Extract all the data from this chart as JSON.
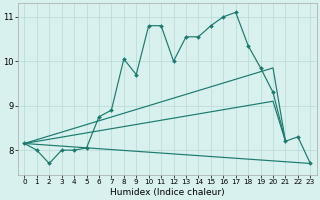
{
  "xlabel": "Humidex (Indice chaleur)",
  "background_color": "#d8f0ee",
  "grid_color": "#b8d8d4",
  "line_color": "#1a7a6e",
  "xlim": [
    -0.5,
    23.5
  ],
  "ylim": [
    7.45,
    11.3
  ],
  "yticks": [
    8,
    9,
    10,
    11
  ],
  "xticks": [
    0,
    1,
    2,
    3,
    4,
    5,
    6,
    7,
    8,
    9,
    10,
    11,
    12,
    13,
    14,
    15,
    16,
    17,
    18,
    19,
    20,
    21,
    22,
    23
  ],
  "main_series": {
    "x": [
      0,
      1,
      2,
      3,
      4,
      5,
      6,
      7,
      8,
      9,
      10,
      11,
      12,
      13,
      14,
      15,
      16,
      17,
      18,
      19,
      20,
      21,
      22,
      23
    ],
    "y": [
      8.15,
      8.0,
      7.7,
      8.0,
      8.0,
      8.05,
      8.75,
      8.9,
      10.05,
      9.7,
      10.8,
      10.8,
      10.0,
      10.55,
      10.55,
      10.8,
      11.0,
      11.1,
      10.35,
      9.85,
      9.3,
      8.2,
      8.3,
      7.7
    ]
  },
  "straight_lines": [
    {
      "x": [
        0,
        20,
        21
      ],
      "y": [
        8.15,
        9.85,
        8.2
      ]
    },
    {
      "x": [
        0,
        20,
        21
      ],
      "y": [
        8.15,
        9.1,
        8.2
      ]
    },
    {
      "x": [
        0,
        23
      ],
      "y": [
        8.15,
        7.7
      ]
    }
  ]
}
